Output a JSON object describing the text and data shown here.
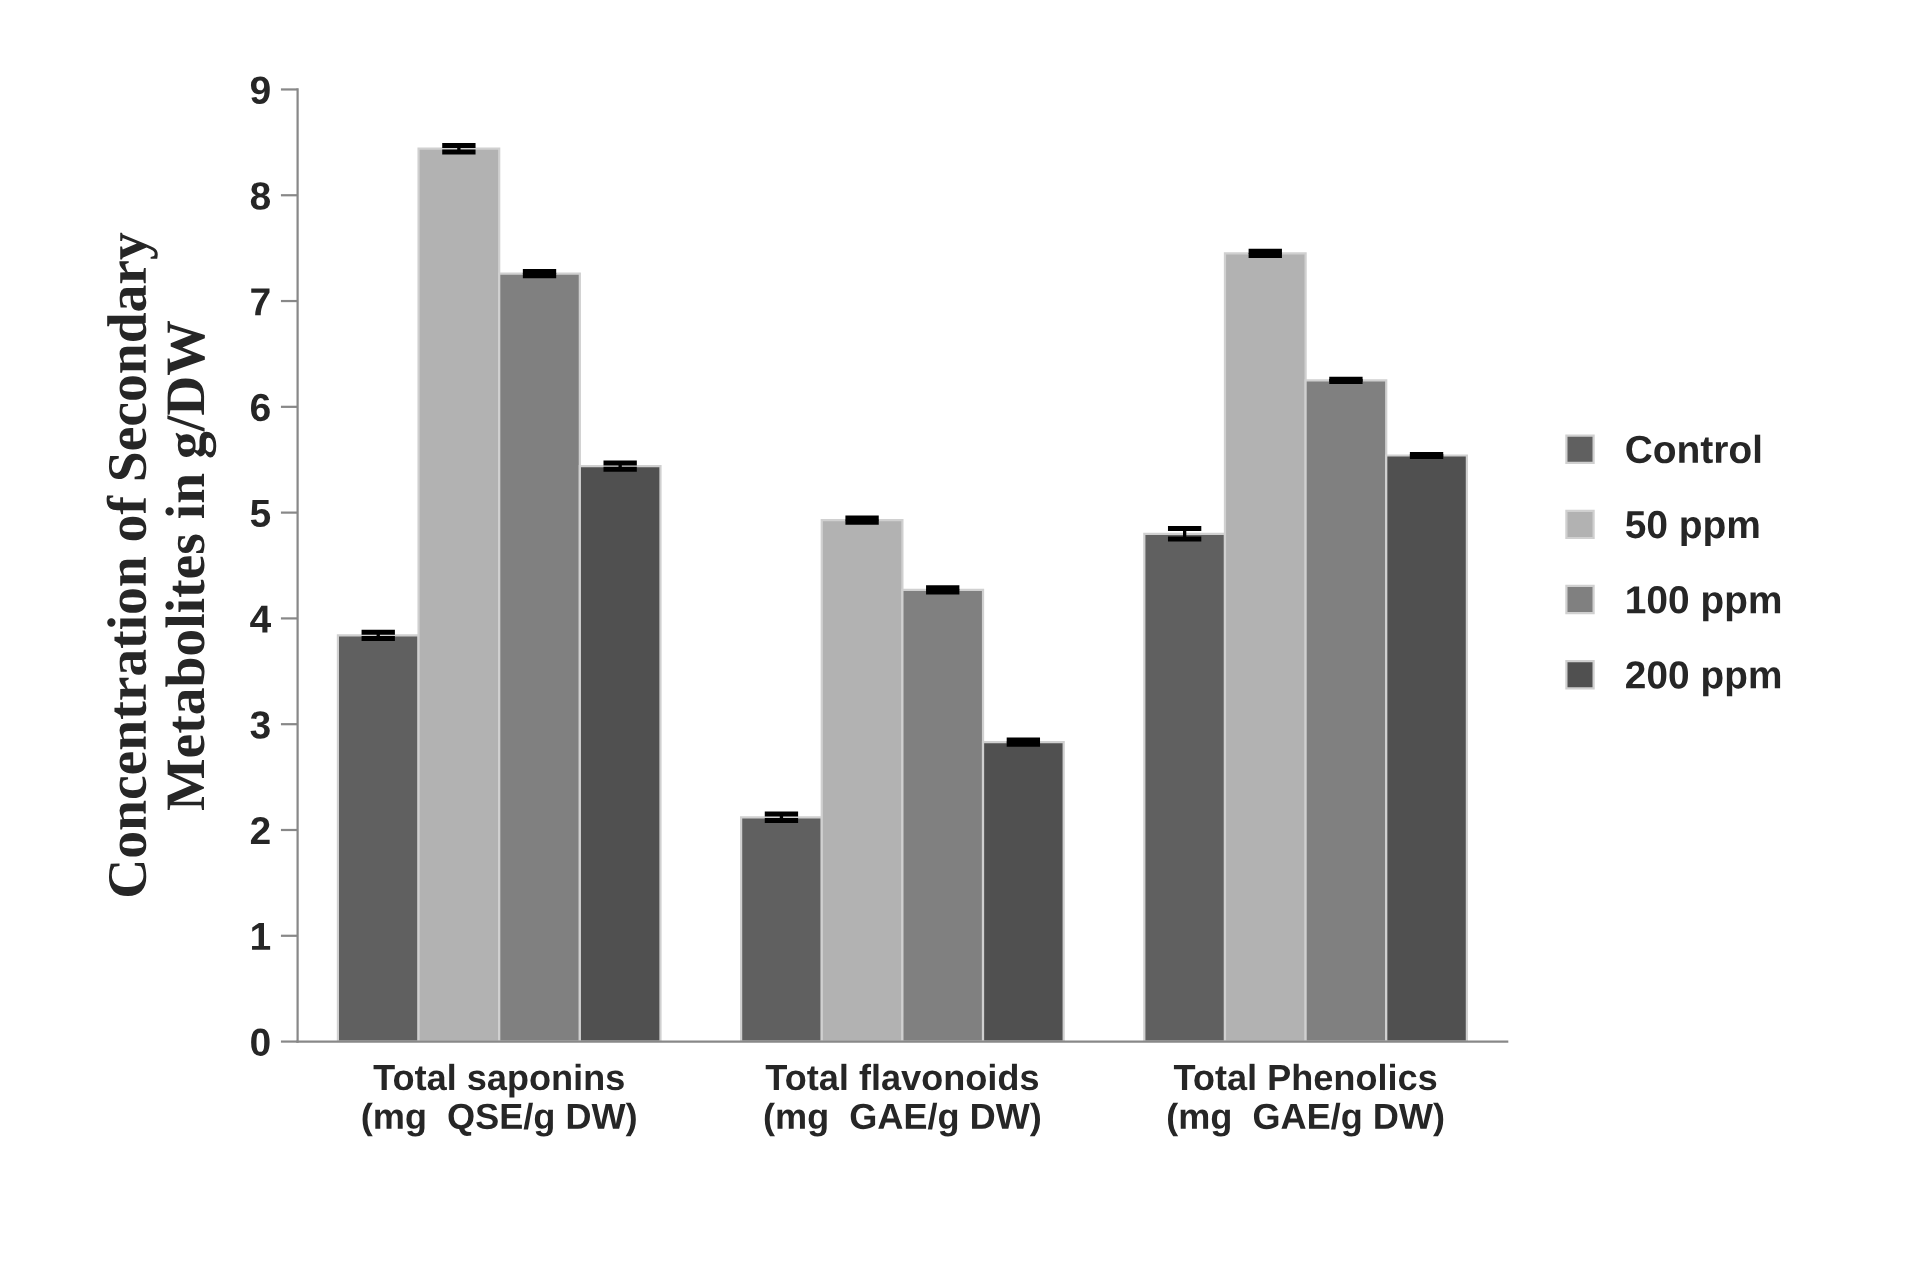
{
  "chart_data": {
    "type": "bar",
    "ylabel": "Concentration of Secondary\nMetabolites in g/DW",
    "categories": [
      "Total saponins\n(mg  QSE/g DW)",
      "Total flavonoids\n(mg  GAE/g DW)",
      "Total Phenolics\n(mg  GAE/g DW)"
    ],
    "series": [
      {
        "name": "Control",
        "color": "#606060",
        "values": [
          3.84,
          2.12,
          4.8
        ],
        "errors": [
          0.03,
          0.03,
          0.05
        ]
      },
      {
        "name": "50 ppm",
        "color": "#b2b2b2",
        "values": [
          8.44,
          4.93,
          7.45
        ],
        "errors": [
          0.03,
          0.02,
          0.02
        ]
      },
      {
        "name": "100 ppm",
        "color": "#808080",
        "values": [
          7.26,
          4.27,
          6.25
        ],
        "errors": [
          0.02,
          0.02,
          0.01
        ]
      },
      {
        "name": "200 ppm",
        "color": "#505050",
        "values": [
          5.44,
          2.83,
          5.54
        ],
        "errors": [
          0.03,
          0.02,
          0.01
        ]
      }
    ],
    "ylim": [
      0,
      9
    ],
    "yticks": [
      0,
      1,
      2,
      3,
      4,
      5,
      6,
      7,
      8,
      9
    ],
    "grid": false,
    "legend": "right"
  }
}
